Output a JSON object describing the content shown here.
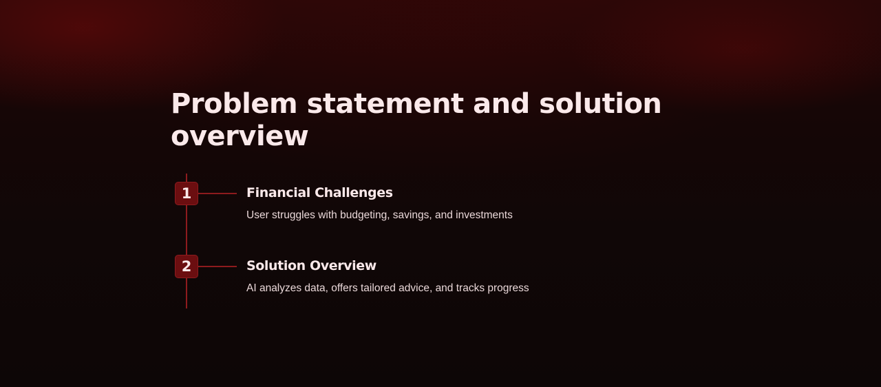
{
  "slide": {
    "title": "Problem statement and solution overview",
    "steps": [
      {
        "number": "1",
        "title": "Financial Challenges",
        "description": "User struggles with budgeting, savings, and investments"
      },
      {
        "number": "2",
        "title": "Solution Overview",
        "description": "AI analyzes data, offers tailored advice, and tracks progress"
      }
    ]
  },
  "colors": {
    "background": "#120707",
    "accent": "#8e1b1e",
    "badge": "#6b0e10",
    "text": "#fbe9ea"
  }
}
